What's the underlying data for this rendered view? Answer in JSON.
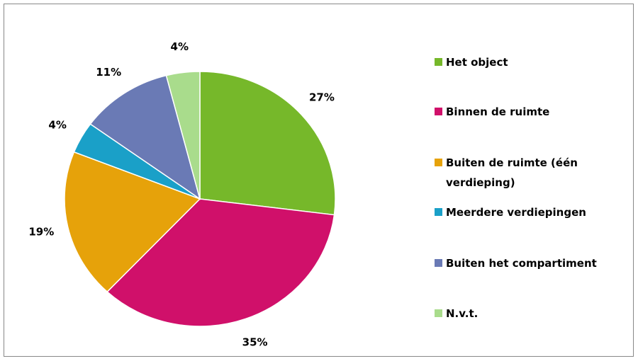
{
  "chart_data": {
    "type": "pie",
    "categories": [
      "Het object",
      "Binnen de ruimte",
      "Buiten de ruimte (één verdieping)",
      "Meerdere verdiepingen",
      "Buiten het compartiment",
      "N.v.t."
    ],
    "values": [
      27,
      35,
      19,
      4,
      11,
      4
    ],
    "value_labels": [
      "27%",
      "35%",
      "19%",
      "4%",
      "11%",
      "4%"
    ],
    "colors": [
      "#76b82a",
      "#d0106a",
      "#e6a20a",
      "#1aa0c8",
      "#6a7ab5",
      "#a9dc8c"
    ],
    "legend": "right"
  }
}
